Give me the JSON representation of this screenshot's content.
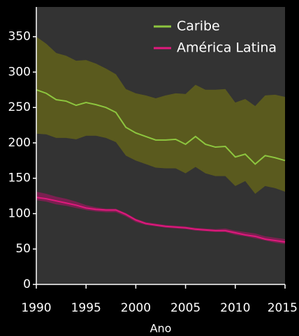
{
  "chart_data": {
    "type": "line",
    "x_label": "Ano",
    "x": [
      1990,
      1991,
      1992,
      1993,
      1994,
      1995,
      1996,
      1997,
      1998,
      1999,
      2000,
      2001,
      2002,
      2003,
      2004,
      2005,
      2006,
      2007,
      2008,
      2009,
      2010,
      2011,
      2012,
      2013,
      2014,
      2015
    ],
    "series": [
      {
        "name": "Caribe",
        "color": "#8dc63f",
        "band_color": "#5a5a1e",
        "values": [
          275,
          270,
          261,
          259,
          253,
          257,
          254,
          250,
          243,
          222,
          214,
          209,
          204,
          204,
          205,
          198,
          209,
          198,
          194,
          195,
          180,
          184,
          170,
          182,
          179,
          175
        ],
        "upper": [
          350,
          340,
          327,
          323,
          316,
          317,
          312,
          305,
          297,
          276,
          270,
          267,
          263,
          267,
          270,
          269,
          282,
          275,
          275,
          276,
          257,
          262,
          252,
          267,
          268,
          265
        ],
        "lower": [
          213,
          212,
          207,
          207,
          205,
          210,
          210,
          207,
          201,
          182,
          175,
          170,
          165,
          164,
          164,
          157,
          166,
          157,
          153,
          153,
          139,
          146,
          128,
          139,
          136,
          131
        ]
      },
      {
        "name": "América Latina",
        "color": "#e0197d",
        "band_color": "#7a2050",
        "values": [
          123,
          121,
          118,
          115,
          112,
          108,
          106,
          105,
          105,
          99,
          91,
          86,
          84,
          82,
          81,
          80,
          78,
          77,
          76,
          76,
          73,
          70,
          68,
          64,
          62,
          60
        ],
        "upper": [
          131,
          128,
          124,
          121,
          117,
          112,
          109,
          107,
          107,
          101,
          93,
          88,
          86,
          84,
          83,
          82,
          80,
          79,
          78,
          79,
          76,
          74,
          72,
          68,
          66,
          64
        ],
        "lower": [
          119,
          117,
          113,
          111,
          108,
          105,
          103,
          102,
          102,
          96,
          88,
          84,
          82,
          80,
          79,
          78,
          76,
          75,
          74,
          74,
          70,
          68,
          65,
          62,
          59,
          57
        ]
      }
    ],
    "xlim": [
      1990,
      2015
    ],
    "xticks": [
      1990,
      1995,
      2000,
      2005,
      2010,
      2015
    ],
    "ylim": [
      0,
      392
    ],
    "yticks": [
      0,
      50,
      100,
      150,
      200,
      250,
      300,
      350
    ],
    "legend": "upper-right"
  }
}
